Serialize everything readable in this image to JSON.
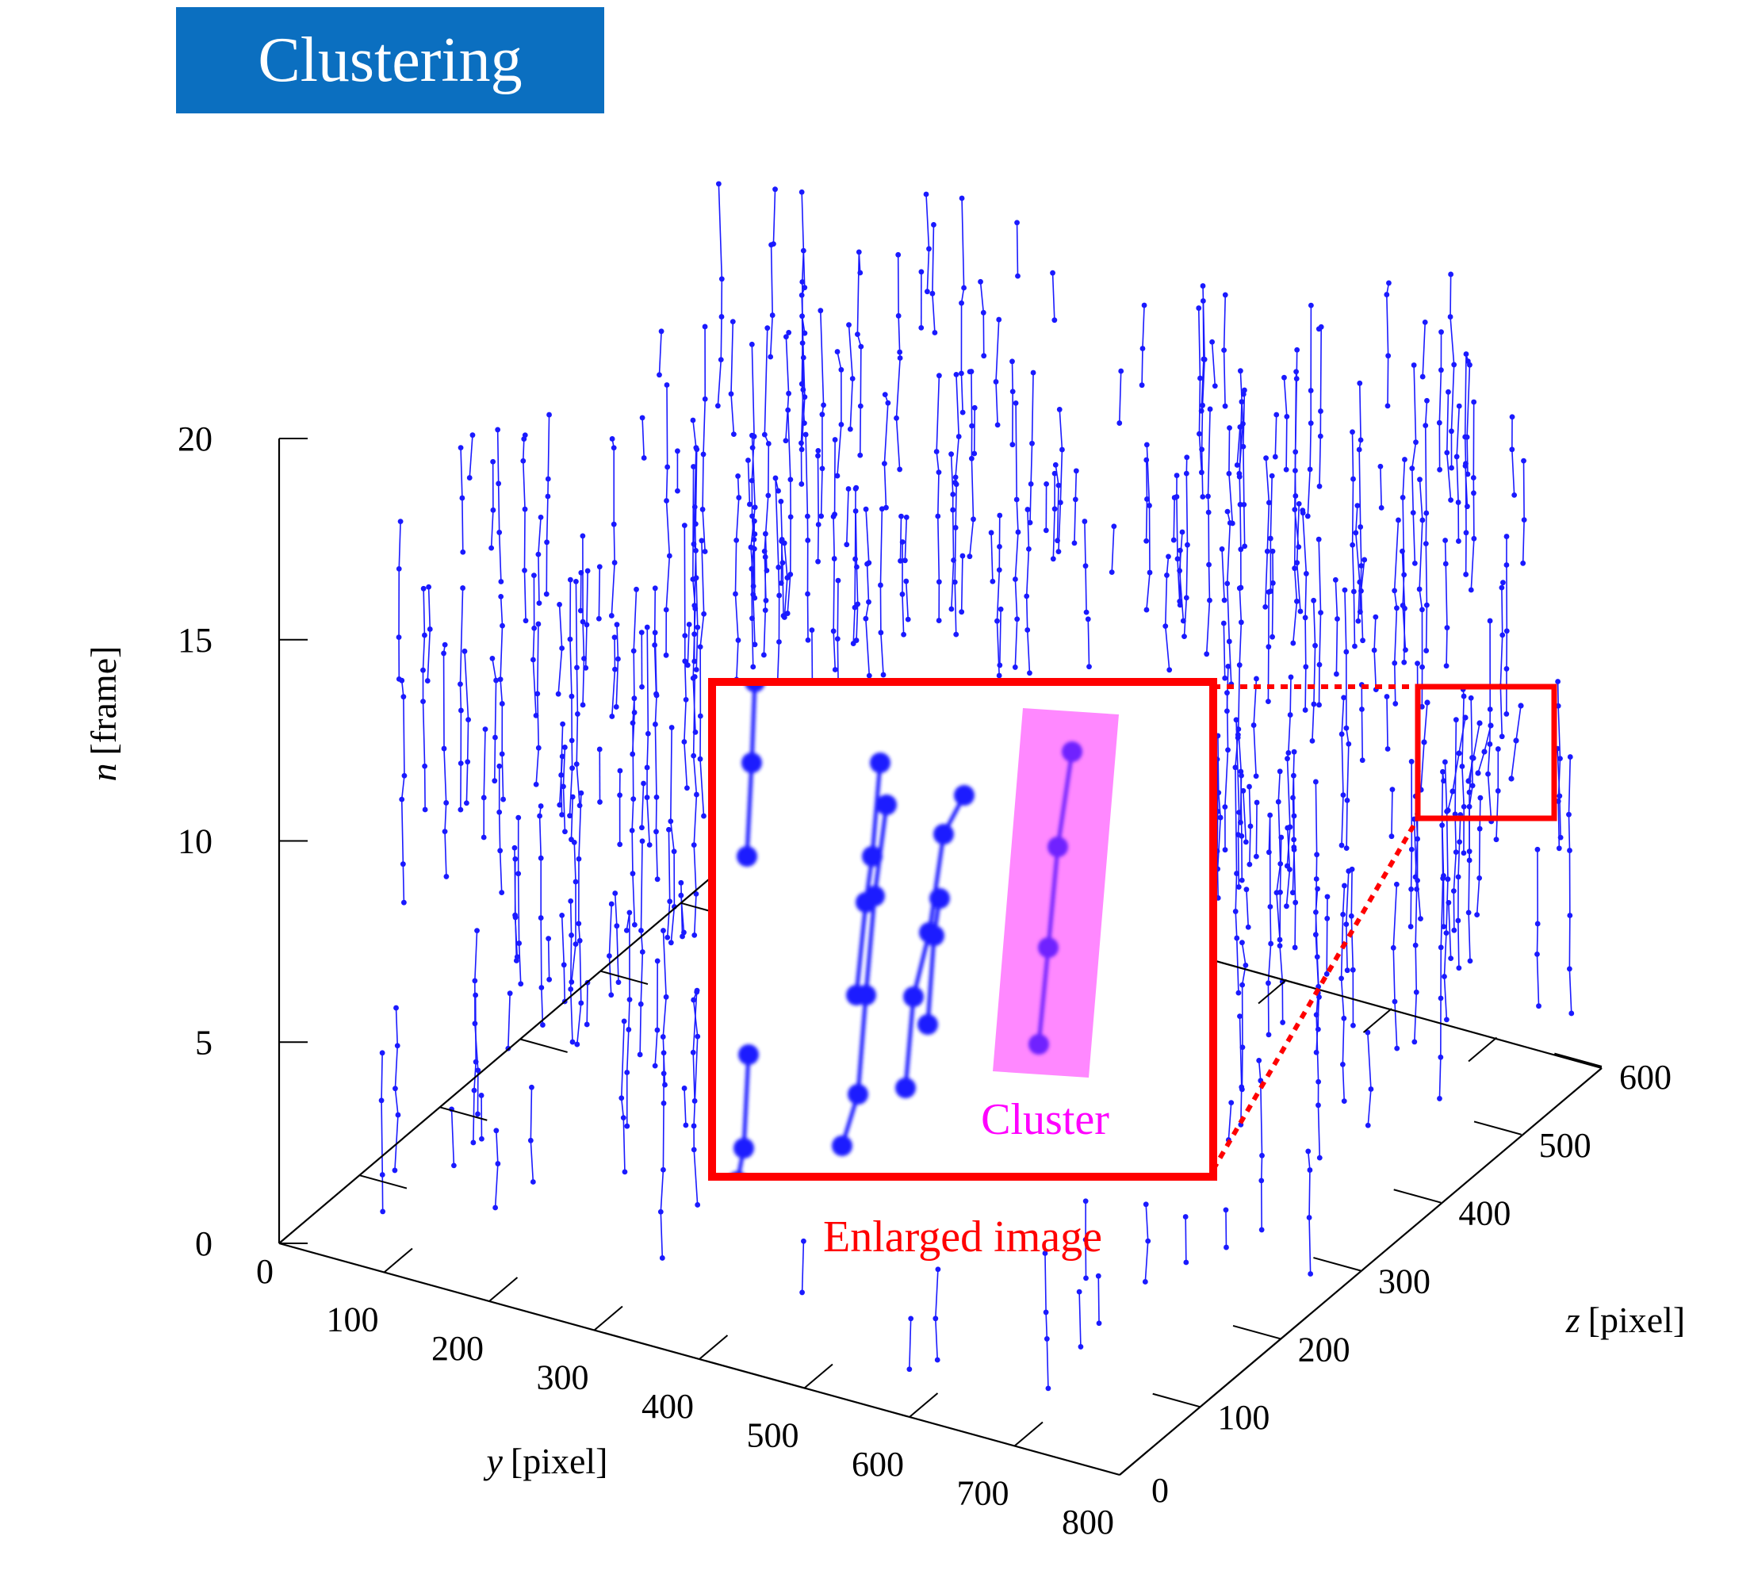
{
  "title": "Clustering",
  "colors": {
    "title_bg": "#0b6fc0",
    "points": "#1a1aff",
    "highlight": "#ff88ff",
    "callout": "#ff0000",
    "cluster_text": "#ff00ff"
  },
  "chart_data": {
    "type": "scatter",
    "projection": "3d",
    "axes": {
      "x": {
        "label_var": "y",
        "label_unit": "[pixel]",
        "range": [
          0,
          800
        ],
        "ticks": [
          "0",
          "100",
          "200",
          "300",
          "400",
          "500",
          "600",
          "700",
          "800"
        ]
      },
      "y": {
        "label_var": "z",
        "label_unit": "[pixel]",
        "range": [
          0,
          600
        ],
        "ticks": [
          "0",
          "100",
          "200",
          "300",
          "400",
          "500",
          "600"
        ]
      },
      "z": {
        "label_var": "n",
        "label_unit": "[frame]",
        "range": [
          0,
          20
        ],
        "ticks": [
          "0",
          "5",
          "10",
          "15",
          "20"
        ]
      }
    },
    "series": [
      {
        "marker": "dot+line",
        "color": "#1a1aff"
      }
    ],
    "inset": {
      "caption": "Enlarged image",
      "highlight_label": "Cluster"
    }
  }
}
